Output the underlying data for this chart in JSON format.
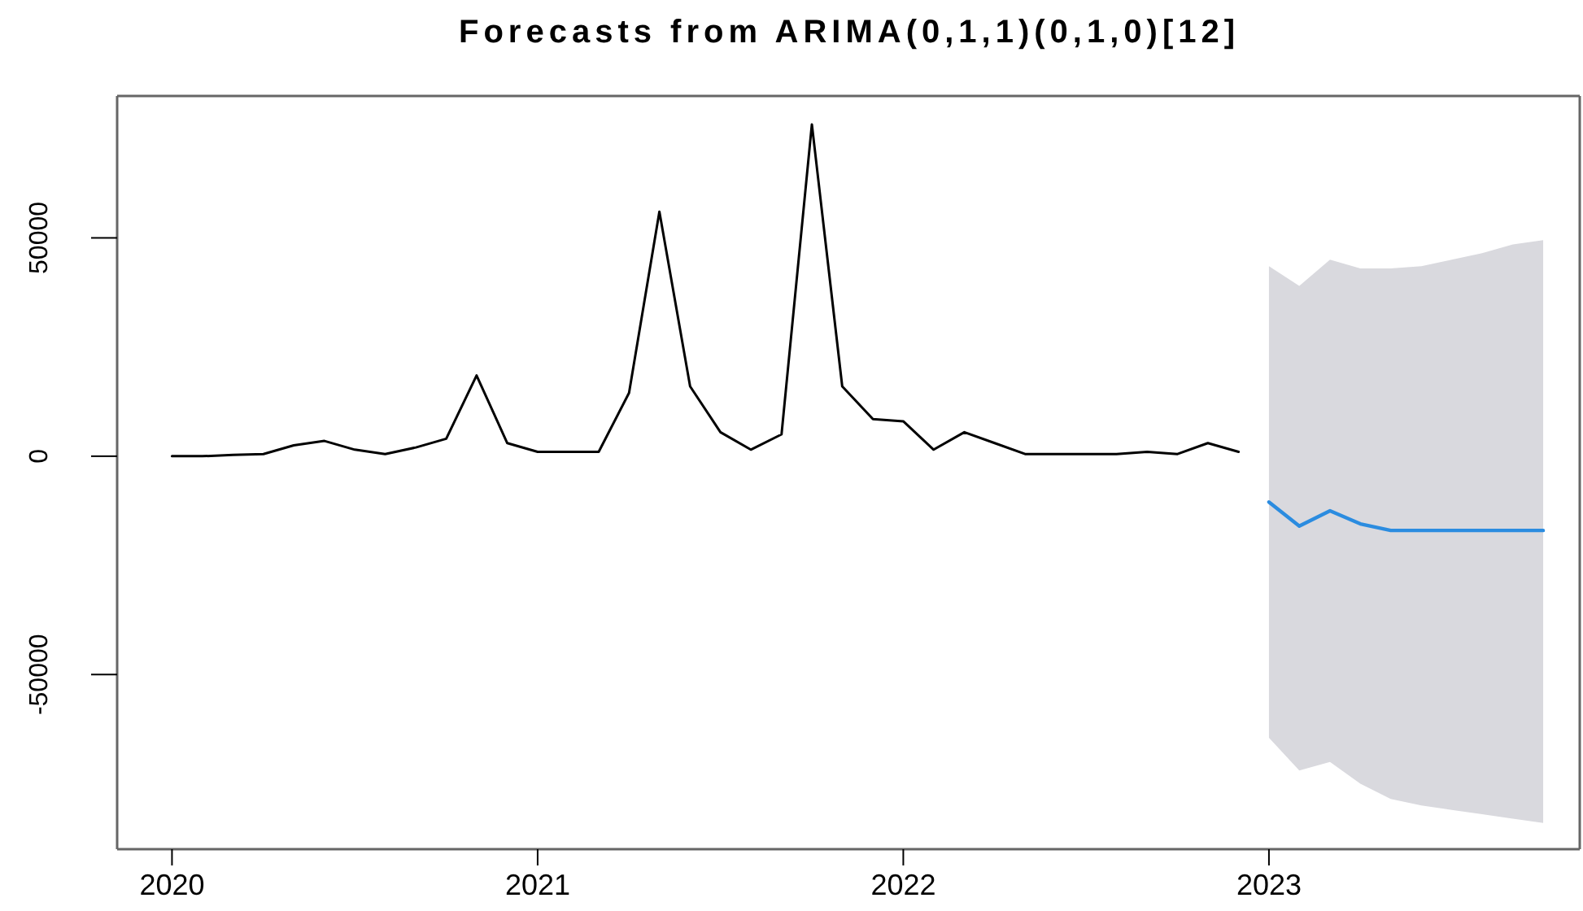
{
  "chart_data": {
    "type": "line",
    "title": "Forecasts from ARIMA(0,1,1)(0,1,0)[12]",
    "xlim": [
      2019.85,
      2023.85
    ],
    "xticks": [
      2020,
      2021,
      2022,
      2023
    ],
    "ylim": [
      -90000,
      82500
    ],
    "yticks": [
      -50000,
      0,
      50000
    ],
    "series": [
      {
        "color": "#000000",
        "x": [
          2020,
          2020.083,
          2020.167,
          2020.25,
          2020.333,
          2020.417,
          2020.5,
          2020.583,
          2020.667,
          2020.75,
          2020.833,
          2020.917,
          2021,
          2021.083,
          2021.167,
          2021.25,
          2021.333,
          2021.417,
          2021.5,
          2021.583,
          2021.667,
          2021.75,
          2021.833,
          2021.917,
          2022,
          2022.083,
          2022.167,
          2022.25,
          2022.333,
          2022.417,
          2022.5,
          2022.583,
          2022.667,
          2022.75,
          2022.833,
          2022.917
        ],
        "values": [
          0,
          0,
          300,
          500,
          2500,
          3500,
          1500,
          500,
          2000,
          4000,
          18500,
          3000,
          1000,
          1000,
          1000,
          14500,
          56000,
          16000,
          5500,
          1500,
          5000,
          76000,
          16000,
          8500,
          8000,
          1500,
          5500,
          3000,
          500,
          500,
          500,
          500,
          1000,
          500,
          3000,
          1000
        ]
      },
      {
        "color": "#2b8ce0",
        "x": [
          2023,
          2023.083,
          2023.167,
          2023.25,
          2023.333,
          2023.417,
          2023.5,
          2023.583,
          2023.667,
          2023.75
        ],
        "values": [
          -10500,
          -16000,
          -12500,
          -15500,
          -17000,
          -17000,
          -17000,
          -17000,
          -17000,
          -17000
        ],
        "lower": [
          -64500,
          -72000,
          -70000,
          -75000,
          -78500,
          -80000,
          -81000,
          -82000,
          -83000,
          -84000
        ],
        "upper": [
          43500,
          39000,
          45000,
          43000,
          43000,
          43500,
          45000,
          46500,
          48500,
          49500
        ]
      }
    ]
  }
}
